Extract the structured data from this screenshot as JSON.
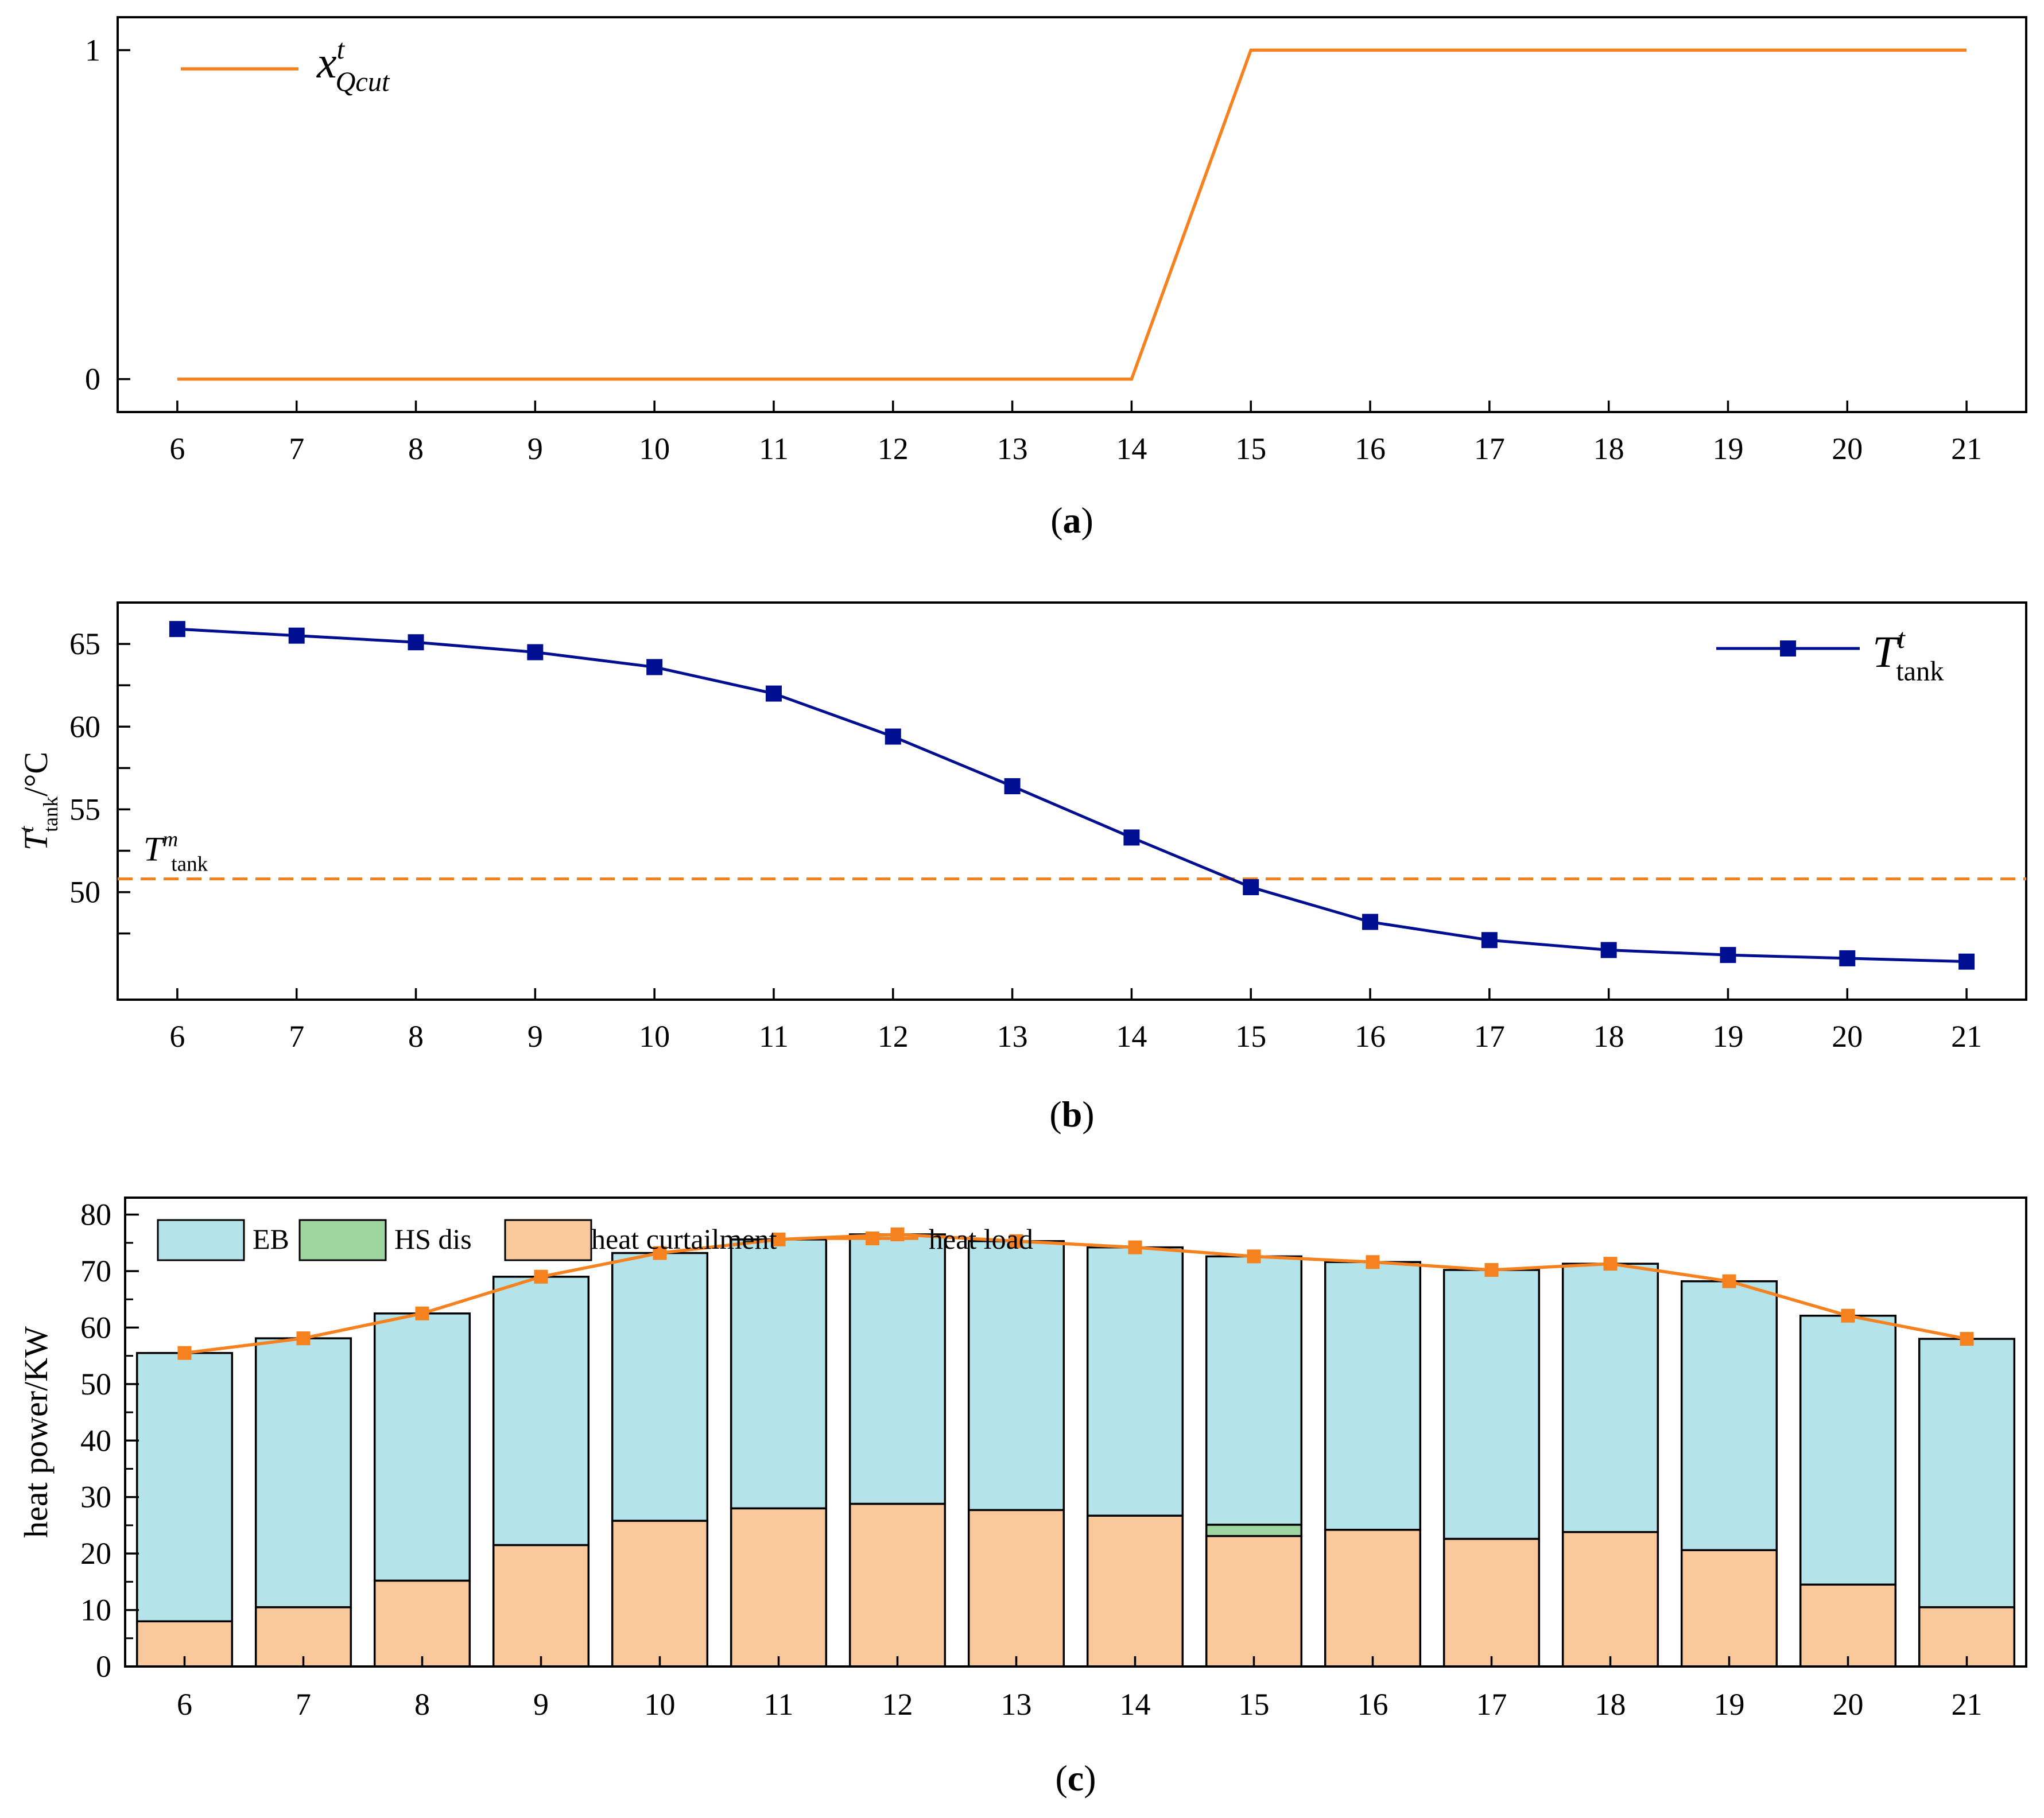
{
  "chart_data": [
    {
      "type": "line",
      "panel_label": "(a)",
      "panel_letter": "a",
      "x": [
        6,
        7,
        8,
        9,
        10,
        11,
        12,
        13,
        14,
        15,
        16,
        17,
        18,
        19,
        20,
        21
      ],
      "ylim": [
        -0.1,
        1.1
      ],
      "yticks": [
        0,
        1
      ],
      "series": [
        {
          "name": "x^t_Qcut",
          "legend_base": "x",
          "legend_sup": "t",
          "legend_sub": "Qcut",
          "color": "#f5821f",
          "values": [
            0,
            0,
            0,
            0,
            0,
            0,
            0,
            0,
            0,
            1,
            1,
            1,
            1,
            1,
            1,
            1
          ]
        }
      ],
      "legend_position": "top-left",
      "xlabel": "",
      "ylabel": ""
    },
    {
      "type": "line",
      "panel_label": "(b)",
      "panel_letter": "b",
      "x": [
        6,
        7,
        8,
        9,
        10,
        11,
        12,
        13,
        14,
        15,
        16,
        17,
        18,
        19,
        20,
        21
      ],
      "ylim": [
        43.5,
        67.5
      ],
      "yticks": [
        50,
        55,
        60,
        65
      ],
      "minor_yticks": [
        47.5,
        52.5,
        57.5,
        62.5
      ],
      "ylabel_base": "T",
      "ylabel_sup": "t",
      "ylabel_sub": "tank",
      "ylabel_unit": "/°C",
      "series": [
        {
          "name": "T^t_tank",
          "legend_base": "T",
          "legend_sup": "t",
          "legend_sub": "tank",
          "color": "#000f91",
          "marker": "square",
          "values": [
            65.9,
            65.5,
            65.1,
            64.5,
            63.6,
            62.0,
            59.4,
            56.4,
            53.3,
            50.3,
            48.2,
            47.1,
            46.5,
            46.2,
            46.0,
            45.8
          ]
        }
      ],
      "reference_line": {
        "value": 50.8,
        "label_base": "T",
        "label_sup": "m",
        "label_sub": "tank",
        "color": "#f5821f",
        "style": "dashed"
      },
      "legend_position": "top-right"
    },
    {
      "type": "bar",
      "panel_label": "(c)",
      "panel_letter": "c",
      "stacked": true,
      "categories": [
        "6",
        "7",
        "8",
        "9",
        "10",
        "11",
        "12",
        "13",
        "14",
        "15",
        "16",
        "17",
        "18",
        "19",
        "20",
        "21"
      ],
      "ylim": [
        0,
        83
      ],
      "yticks": [
        0,
        10,
        20,
        30,
        40,
        50,
        60,
        70,
        80
      ],
      "ylabel": "heat power/KW",
      "series": [
        {
          "name": "heat curtailment",
          "color": "#f9c89b",
          "values": [
            8,
            10.5,
            15.2,
            21.5,
            25.8,
            28,
            28.8,
            27.7,
            26.7,
            23.1,
            24.2,
            22.6,
            23.8,
            20.6,
            14.5,
            10.5
          ]
        },
        {
          "name": "HS dis",
          "color": "#9fd69f",
          "values": [
            0,
            0,
            0,
            0,
            0,
            0,
            0,
            0,
            0,
            2.0,
            0,
            0,
            0,
            0,
            0,
            0
          ]
        },
        {
          "name": "EB",
          "color": "#b4e3e9",
          "values": [
            47.5,
            47.6,
            47.3,
            47.5,
            47.4,
            47.6,
            47.7,
            47.6,
            47.5,
            47.5,
            47.4,
            47.6,
            47.5,
            47.6,
            47.6,
            47.5
          ]
        }
      ],
      "line_series": {
        "name": "heat load",
        "color": "#f5821f",
        "marker": "square",
        "values": [
          55.5,
          58.1,
          62.5,
          69.0,
          73.2,
          75.6,
          76.5,
          75.3,
          74.2,
          72.6,
          71.6,
          70.2,
          71.3,
          68.2,
          62.1,
          58.0
        ]
      },
      "legend_order": [
        "EB",
        "HS dis",
        "heat curtailment",
        "heat load"
      ],
      "legend_position": "top-left"
    }
  ]
}
